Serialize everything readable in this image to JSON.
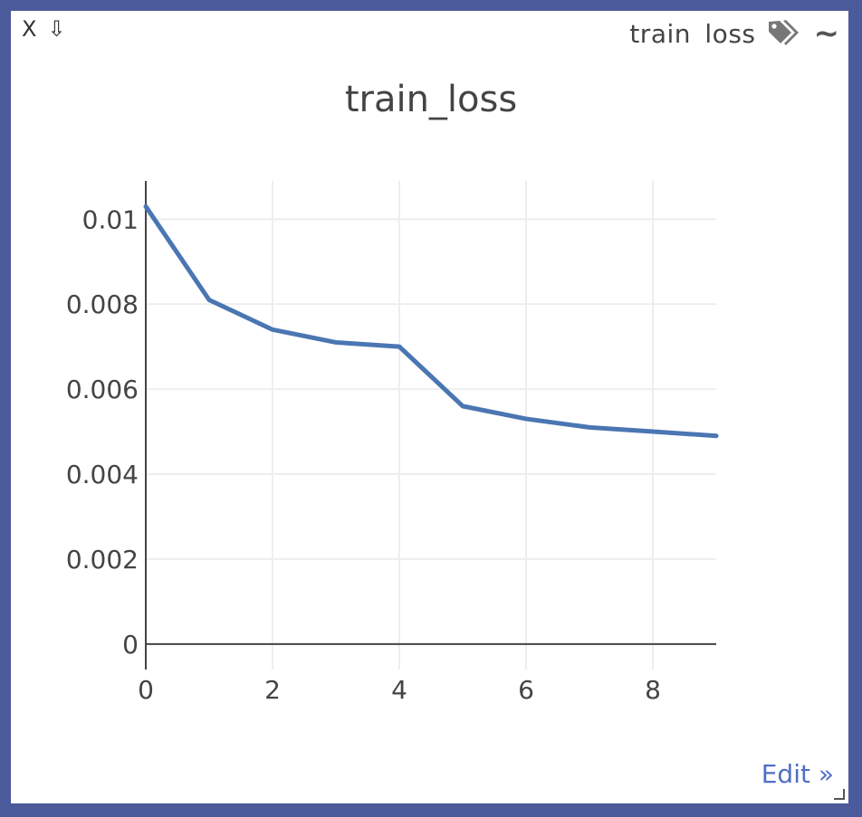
{
  "window": {
    "close_label": "X",
    "download_label": "⇩",
    "tag_text": "train loss",
    "smooth_label": "~",
    "edit_label": "Edit »"
  },
  "colors": {
    "line": "#4a76b2",
    "grid": "#eeeeee",
    "axis": "#444444",
    "tick_text": "#444444",
    "title_text": "#444444",
    "border": "#4a5a9a"
  },
  "chart_data": {
    "type": "line",
    "title": "train_loss",
    "xlabel": "",
    "ylabel": "",
    "xlim": [
      0,
      9
    ],
    "ylim": [
      -0.0006,
      0.0109
    ],
    "xticks": [
      0,
      2,
      4,
      6,
      8
    ],
    "xtick_labels": [
      "0",
      "2",
      "4",
      "6",
      "8"
    ],
    "yticks": [
      0,
      0.002,
      0.004,
      0.006,
      0.008,
      0.01
    ],
    "ytick_labels": [
      "0",
      "0.002",
      "0.004",
      "0.006",
      "0.008",
      "0.01"
    ],
    "grid": true,
    "legend": "none",
    "series": [
      {
        "x": [
          0,
          1,
          2,
          3,
          4,
          5,
          6,
          7,
          8,
          9
        ],
        "y": [
          0.0103,
          0.0081,
          0.0074,
          0.0071,
          0.007,
          0.0056,
          0.0053,
          0.0051,
          0.005,
          0.0049
        ]
      }
    ]
  }
}
